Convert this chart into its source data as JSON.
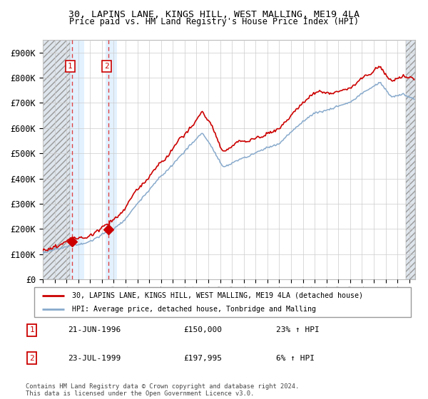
{
  "title1": "30, LAPINS LANE, KINGS HILL, WEST MALLING, ME19 4LA",
  "title2": "Price paid vs. HM Land Registry's House Price Index (HPI)",
  "ylim": [
    0,
    950000
  ],
  "yticks": [
    0,
    100000,
    200000,
    300000,
    400000,
    500000,
    600000,
    700000,
    800000,
    900000
  ],
  "ytick_labels": [
    "£0",
    "£100K",
    "£200K",
    "£300K",
    "£400K",
    "£500K",
    "£600K",
    "£700K",
    "£800K",
    "£900K"
  ],
  "xlim": [
    1994.0,
    2025.5
  ],
  "transaction1_x": 1996.47,
  "transaction1_price": 150000,
  "transaction2_x": 1999.56,
  "transaction2_price": 197995,
  "legend_line1": "30, LAPINS LANE, KINGS HILL, WEST MALLING, ME19 4LA (detached house)",
  "legend_line2": "HPI: Average price, detached house, Tonbridge and Malling",
  "footer": "Contains HM Land Registry data © Crown copyright and database right 2024.\nThis data is licensed under the Open Government Licence v3.0.",
  "hatch_color": "#c8d4e0",
  "shade_color": "#ddeeff",
  "grid_color": "#cccccc",
  "line_red": "#cc0000",
  "line_blue": "#88aacc",
  "hatch_left_end": 1996.3,
  "hatch_right_start": 2024.7,
  "shade1_start": 1996.3,
  "shade1_end": 1997.5,
  "shade2_start": 1999.3,
  "shade2_end": 2000.3
}
